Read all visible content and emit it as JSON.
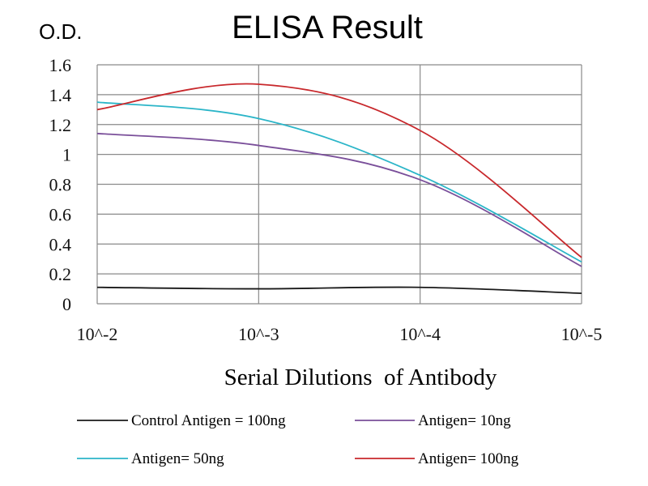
{
  "chart_data": {
    "type": "line",
    "title": "ELISA Result",
    "ylabel": "O.D.",
    "xlabel": "Serial Dilutions  of Antibody",
    "categories": [
      "10^-2",
      "10^-3",
      "10^-4",
      "10^-5"
    ],
    "ylim": [
      0,
      1.6
    ],
    "yticks": [
      "0",
      "0.2",
      "0.4",
      "0.6",
      "0.8",
      "1",
      "1.2",
      "1.4",
      "1.6"
    ],
    "grid": true,
    "legend_position": "bottom",
    "series": [
      {
        "name": "Control Antigen = 100ng",
        "color": "#1a1a1a",
        "values": [
          0.11,
          0.1,
          0.11,
          0.07
        ]
      },
      {
        "name": "Antigen= 10ng",
        "color": "#7a4f9a",
        "values": [
          1.14,
          1.06,
          0.83,
          0.25
        ]
      },
      {
        "name": "Antigen= 50ng",
        "color": "#2bb5c8",
        "values": [
          1.35,
          1.24,
          0.86,
          0.28
        ]
      },
      {
        "name": "Antigen= 100ng",
        "color": "#c8282c",
        "values": [
          1.3,
          1.47,
          1.16,
          0.31
        ]
      }
    ]
  }
}
